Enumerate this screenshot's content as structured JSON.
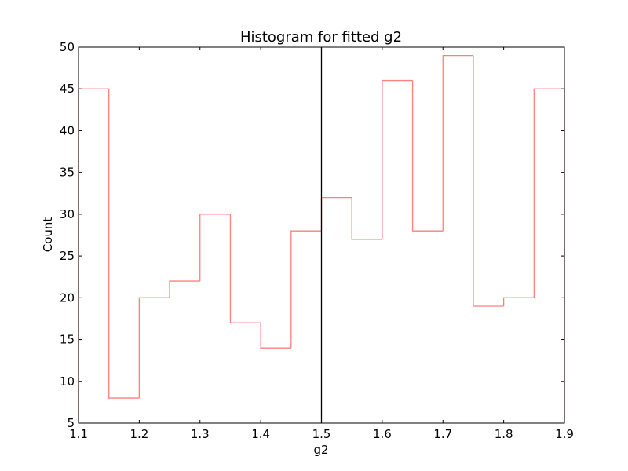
{
  "chart_data": {
    "type": "bar",
    "style": "step-histogram",
    "title": "Histogram for fitted g2",
    "xlabel": "g2",
    "ylabel": "Count",
    "xlim": [
      1.1,
      1.9
    ],
    "ylim": [
      5,
      50
    ],
    "xticks": [
      "1.1",
      "1.2",
      "1.3",
      "1.4",
      "1.5",
      "1.6",
      "1.7",
      "1.8",
      "1.9"
    ],
    "yticks": [
      "5",
      "10",
      "15",
      "20",
      "25",
      "30",
      "35",
      "40",
      "45",
      "50"
    ],
    "bin_edges": [
      1.1,
      1.15,
      1.2,
      1.25,
      1.3,
      1.35,
      1.4,
      1.45,
      1.5,
      1.55,
      1.6,
      1.65,
      1.7,
      1.75,
      1.8,
      1.85,
      1.9
    ],
    "values": [
      45,
      8,
      20,
      22,
      30,
      17,
      14,
      28,
      32,
      27,
      46,
      28,
      49,
      19,
      20,
      45
    ],
    "reference_line_x": 1.5,
    "grid": false,
    "colors": {
      "histogram": "#ff7f7f",
      "reference_line": "#000000",
      "axes": "#000000"
    }
  }
}
